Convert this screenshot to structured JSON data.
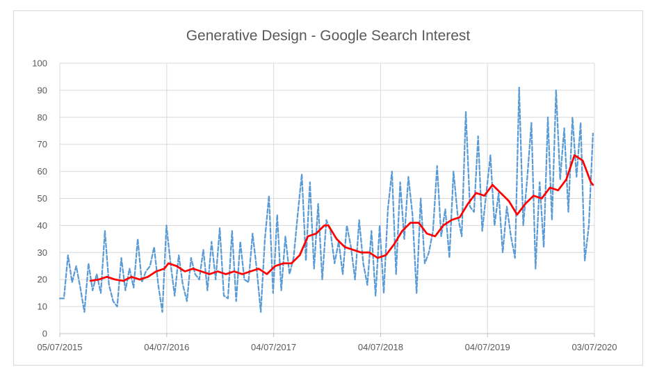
{
  "chart_data": {
    "type": "line",
    "title": "Generative Design - Google Search Interest",
    "xlabel": "",
    "ylabel": "",
    "x_axis_type": "date",
    "xlim": [
      "2015-07-05",
      "2020-07-03"
    ],
    "ylim": [
      0,
      100
    ],
    "yticks": [
      0,
      10,
      20,
      30,
      40,
      50,
      60,
      70,
      80,
      90,
      100
    ],
    "xticks": [
      {
        "date": "2015-07-05",
        "label": "05/07/2015"
      },
      {
        "date": "2016-07-04",
        "label": "04/07/2016"
      },
      {
        "date": "2017-07-04",
        "label": "04/07/2017"
      },
      {
        "date": "2018-07-04",
        "label": "04/07/2018"
      },
      {
        "date": "2019-07-04",
        "label": "04/07/2019"
      },
      {
        "date": "2020-07-03",
        "label": "03/07/2020"
      }
    ],
    "grid": true,
    "legend": "none",
    "series": [
      {
        "style": "dashed",
        "color": "#5b9bd5",
        "points": [
          [
            "2015-07-05",
            13
          ],
          [
            "2015-07-19",
            13
          ],
          [
            "2015-08-02",
            29
          ],
          [
            "2015-08-16",
            19
          ],
          [
            "2015-08-30",
            25
          ],
          [
            "2015-09-13",
            17
          ],
          [
            "2015-09-27",
            8
          ],
          [
            "2015-10-11",
            26
          ],
          [
            "2015-10-25",
            16
          ],
          [
            "2015-11-08",
            22
          ],
          [
            "2015-11-22",
            15
          ],
          [
            "2015-12-06",
            38
          ],
          [
            "2015-12-20",
            18
          ],
          [
            "2016-01-03",
            12
          ],
          [
            "2016-01-17",
            10
          ],
          [
            "2016-01-31",
            28
          ],
          [
            "2016-02-14",
            16
          ],
          [
            "2016-02-28",
            24
          ],
          [
            "2016-03-13",
            17
          ],
          [
            "2016-03-27",
            35
          ],
          [
            "2016-04-10",
            19
          ],
          [
            "2016-04-24",
            23
          ],
          [
            "2016-05-08",
            25
          ],
          [
            "2016-05-22",
            32
          ],
          [
            "2016-06-05",
            18
          ],
          [
            "2016-06-19",
            8
          ],
          [
            "2016-07-03",
            40
          ],
          [
            "2016-07-17",
            26
          ],
          [
            "2016-07-31",
            14
          ],
          [
            "2016-08-14",
            29
          ],
          [
            "2016-08-28",
            18
          ],
          [
            "2016-09-11",
            12
          ],
          [
            "2016-09-25",
            28
          ],
          [
            "2016-10-09",
            22
          ],
          [
            "2016-10-23",
            20
          ],
          [
            "2016-11-06",
            31
          ],
          [
            "2016-11-20",
            16
          ],
          [
            "2016-12-04",
            34
          ],
          [
            "2016-12-18",
            20
          ],
          [
            "2017-01-01",
            39
          ],
          [
            "2017-01-15",
            14
          ],
          [
            "2017-01-29",
            13
          ],
          [
            "2017-02-12",
            38
          ],
          [
            "2017-02-26",
            12
          ],
          [
            "2017-03-12",
            34
          ],
          [
            "2017-03-26",
            20
          ],
          [
            "2017-04-09",
            19
          ],
          [
            "2017-04-23",
            37
          ],
          [
            "2017-05-07",
            24
          ],
          [
            "2017-05-21",
            8
          ],
          [
            "2017-06-04",
            35
          ],
          [
            "2017-06-18",
            51
          ],
          [
            "2017-07-02",
            15
          ],
          [
            "2017-07-16",
            44
          ],
          [
            "2017-07-30",
            16
          ],
          [
            "2017-08-13",
            36
          ],
          [
            "2017-08-27",
            22
          ],
          [
            "2017-09-10",
            28
          ],
          [
            "2017-09-24",
            44
          ],
          [
            "2017-10-08",
            59
          ],
          [
            "2017-10-22",
            27
          ],
          [
            "2017-11-05",
            56
          ],
          [
            "2017-11-19",
            24
          ],
          [
            "2017-12-03",
            48
          ],
          [
            "2017-12-17",
            20
          ],
          [
            "2017-12-31",
            42
          ],
          [
            "2018-01-14",
            38
          ],
          [
            "2018-01-28",
            26
          ],
          [
            "2018-02-11",
            34
          ],
          [
            "2018-02-25",
            22
          ],
          [
            "2018-03-11",
            40
          ],
          [
            "2018-03-25",
            32
          ],
          [
            "2018-04-08",
            20
          ],
          [
            "2018-04-22",
            42
          ],
          [
            "2018-05-06",
            26
          ],
          [
            "2018-05-20",
            18
          ],
          [
            "2018-06-03",
            38
          ],
          [
            "2018-06-17",
            14
          ],
          [
            "2018-07-01",
            40
          ],
          [
            "2018-07-15",
            15
          ],
          [
            "2018-07-29",
            46
          ],
          [
            "2018-08-12",
            60
          ],
          [
            "2018-08-26",
            22
          ],
          [
            "2018-09-09",
            56
          ],
          [
            "2018-09-23",
            35
          ],
          [
            "2018-10-07",
            58
          ],
          [
            "2018-10-21",
            44
          ],
          [
            "2018-11-04",
            15
          ],
          [
            "2018-11-18",
            50
          ],
          [
            "2018-12-02",
            26
          ],
          [
            "2018-12-16",
            30
          ],
          [
            "2018-12-30",
            38
          ],
          [
            "2019-01-13",
            62
          ],
          [
            "2019-01-27",
            36
          ],
          [
            "2019-02-10",
            46
          ],
          [
            "2019-02-24",
            28
          ],
          [
            "2019-03-10",
            60
          ],
          [
            "2019-03-24",
            44
          ],
          [
            "2019-04-07",
            36
          ],
          [
            "2019-04-21",
            82
          ],
          [
            "2019-05-05",
            47
          ],
          [
            "2019-05-19",
            45
          ],
          [
            "2019-06-02",
            73
          ],
          [
            "2019-06-16",
            38
          ],
          [
            "2019-06-30",
            52
          ],
          [
            "2019-07-14",
            66
          ],
          [
            "2019-07-28",
            40
          ],
          [
            "2019-08-11",
            52
          ],
          [
            "2019-08-25",
            30
          ],
          [
            "2019-09-08",
            47
          ],
          [
            "2019-09-22",
            36
          ],
          [
            "2019-10-06",
            28
          ],
          [
            "2019-10-20",
            91
          ],
          [
            "2019-11-03",
            40
          ],
          [
            "2019-11-17",
            58
          ],
          [
            "2019-12-01",
            78
          ],
          [
            "2019-12-15",
            24
          ],
          [
            "2019-12-29",
            56
          ],
          [
            "2020-01-12",
            32
          ],
          [
            "2020-01-26",
            80
          ],
          [
            "2020-02-09",
            42
          ],
          [
            "2020-02-23",
            90
          ],
          [
            "2020-03-08",
            57
          ],
          [
            "2020-03-22",
            76
          ],
          [
            "2020-04-05",
            45
          ],
          [
            "2020-04-19",
            80
          ],
          [
            "2020-05-03",
            58
          ],
          [
            "2020-05-17",
            78
          ],
          [
            "2020-05-31",
            27
          ],
          [
            "2020-06-14",
            40
          ],
          [
            "2020-06-28",
            74
          ]
        ]
      },
      {
        "style": "solid",
        "color": "#ff0000",
        "points": [
          [
            "2015-10-18",
            19.5
          ],
          [
            "2015-11-15",
            20
          ],
          [
            "2015-12-13",
            21
          ],
          [
            "2016-01-10",
            20
          ],
          [
            "2016-02-07",
            19.5
          ],
          [
            "2016-03-06",
            21
          ],
          [
            "2016-04-03",
            20
          ],
          [
            "2016-05-01",
            21
          ],
          [
            "2016-05-29",
            23
          ],
          [
            "2016-06-26",
            24
          ],
          [
            "2016-07-10",
            26
          ],
          [
            "2016-08-07",
            25
          ],
          [
            "2016-09-04",
            23
          ],
          [
            "2016-10-02",
            24
          ],
          [
            "2016-10-30",
            23
          ],
          [
            "2016-11-27",
            22
          ],
          [
            "2016-12-25",
            23
          ],
          [
            "2017-01-22",
            22
          ],
          [
            "2017-02-19",
            23
          ],
          [
            "2017-03-19",
            22
          ],
          [
            "2017-04-16",
            23
          ],
          [
            "2017-05-14",
            24
          ],
          [
            "2017-06-11",
            22
          ],
          [
            "2017-07-09",
            25
          ],
          [
            "2017-08-06",
            26
          ],
          [
            "2017-09-03",
            26
          ],
          [
            "2017-10-01",
            29
          ],
          [
            "2017-10-29",
            36
          ],
          [
            "2017-11-26",
            37
          ],
          [
            "2017-12-24",
            40
          ],
          [
            "2018-01-07",
            40
          ],
          [
            "2018-02-04",
            35
          ],
          [
            "2018-03-04",
            32
          ],
          [
            "2018-04-01",
            31
          ],
          [
            "2018-04-29",
            30
          ],
          [
            "2018-05-27",
            30
          ],
          [
            "2018-06-24",
            28
          ],
          [
            "2018-07-22",
            29
          ],
          [
            "2018-08-19",
            33
          ],
          [
            "2018-09-16",
            38
          ],
          [
            "2018-10-14",
            41
          ],
          [
            "2018-11-11",
            41
          ],
          [
            "2018-12-09",
            37
          ],
          [
            "2019-01-06",
            36
          ],
          [
            "2019-02-03",
            40
          ],
          [
            "2019-03-03",
            42
          ],
          [
            "2019-03-31",
            43
          ],
          [
            "2019-04-28",
            48
          ],
          [
            "2019-05-26",
            52
          ],
          [
            "2019-06-23",
            51
          ],
          [
            "2019-07-21",
            55
          ],
          [
            "2019-08-18",
            52
          ],
          [
            "2019-09-15",
            49
          ],
          [
            "2019-10-13",
            44
          ],
          [
            "2019-11-10",
            48
          ],
          [
            "2019-12-08",
            51
          ],
          [
            "2020-01-05",
            50
          ],
          [
            "2020-02-02",
            54
          ],
          [
            "2020-03-01",
            53
          ],
          [
            "2020-03-29",
            57
          ],
          [
            "2020-04-26",
            66
          ],
          [
            "2020-05-24",
            64
          ],
          [
            "2020-06-21",
            56
          ],
          [
            "2020-06-28",
            55
          ]
        ]
      }
    ]
  }
}
